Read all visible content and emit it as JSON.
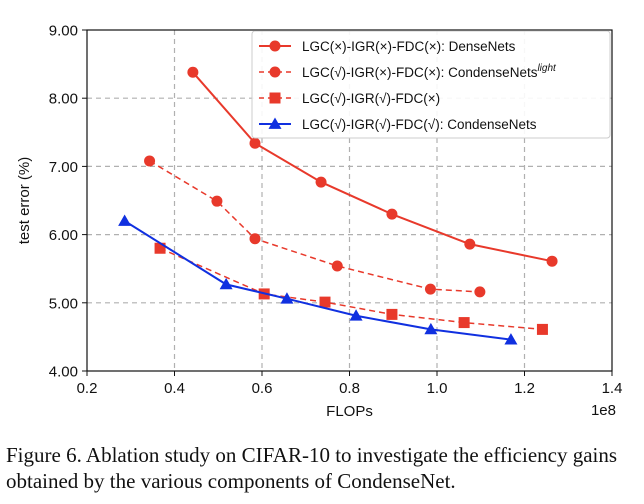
{
  "chart_data": {
    "type": "line",
    "title": "",
    "xlabel": "FLOPs",
    "ylabel": "test error (%)",
    "x_offset_text": "1e8",
    "xlim": [
      0.2,
      1.4
    ],
    "ylim": [
      4.0,
      9.0
    ],
    "xticks": [
      0.2,
      0.4,
      0.6,
      0.8,
      1.0,
      1.2,
      1.4
    ],
    "xtick_labels": [
      "0.2",
      "0.4",
      "0.6",
      "0.8",
      "1.0",
      "1.2",
      "1.4"
    ],
    "yticks": [
      4.0,
      5.0,
      6.0,
      7.0,
      8.0,
      9.0
    ],
    "ytick_labels": [
      "4.00",
      "5.00",
      "6.00",
      "7.00",
      "8.00",
      "9.00"
    ],
    "grid": true,
    "legend_position": "top-right",
    "series": [
      {
        "name": "LGC(×)-IGR(×)-FDC(×): DenseNets",
        "label_main": "LGC(×)-IGR(×)-FDC(×): DenseNets",
        "label_sup": "",
        "color": "#e8392b",
        "line": "solid",
        "marker": "circle",
        "x": [
          0.442,
          0.584,
          0.735,
          0.897,
          1.075,
          1.263
        ],
        "y": [
          8.38,
          7.34,
          6.77,
          6.3,
          5.86,
          5.61
        ]
      },
      {
        "name": "LGC(√)-IGR(×)-FDC(×): CondenseNets light",
        "label_main": "LGC(√)-IGR(×)-FDC(×): CondenseNets",
        "label_sup": "light",
        "color": "#e8392b",
        "line": "dashed",
        "marker": "circle",
        "x": [
          0.343,
          0.497,
          0.584,
          0.772,
          0.985,
          1.098
        ],
        "y": [
          7.08,
          6.49,
          5.94,
          5.54,
          5.2,
          5.16
        ]
      },
      {
        "name": "LGC(√)-IGR(√)-FDC(×)",
        "label_main": "LGC(√)-IGR(√)-FDC(×)",
        "label_sup": "",
        "color": "#e8392b",
        "line": "dashed",
        "marker": "square",
        "x": [
          0.367,
          0.605,
          0.744,
          0.897,
          1.062,
          1.241
        ],
        "y": [
          5.8,
          5.13,
          5.01,
          4.83,
          4.71,
          4.61
        ]
      },
      {
        "name": "LGC(√)-IGR(√)-FDC(√): CondenseNets",
        "label_main": "LGC(√)-IGR(√)-FDC(√): CondenseNets",
        "label_sup": "",
        "color": "#1030e0",
        "line": "solid",
        "marker": "triangle",
        "x": [
          0.286,
          0.518,
          0.657,
          0.815,
          0.986,
          1.169
        ],
        "y": [
          6.2,
          5.27,
          5.06,
          4.81,
          4.61,
          4.46
        ]
      }
    ]
  },
  "caption": {
    "text": "Figure 6. Ablation study on CIFAR-10 to investigate the efficiency gains obtained by the various components of CondenseNet."
  }
}
